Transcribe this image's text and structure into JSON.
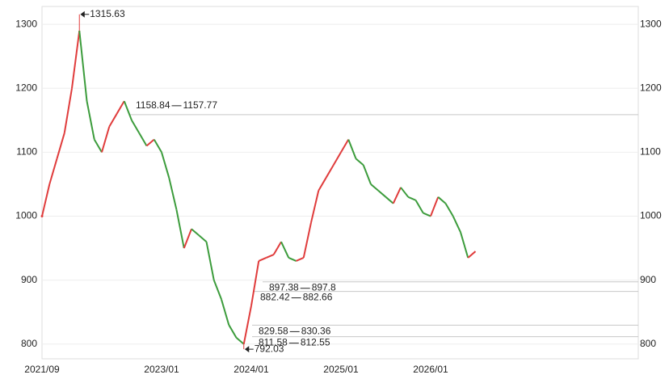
{
  "chart_data": {
    "type": "line",
    "categories": [
      "2021/09",
      null,
      null,
      null,
      null,
      null,
      null,
      null,
      null,
      null,
      null,
      null,
      null,
      null,
      null,
      null,
      "2023/01",
      null,
      null,
      null,
      null,
      null,
      null,
      null,
      null,
      null,
      null,
      null,
      "2024/01",
      null,
      null,
      null,
      null,
      null,
      null,
      null,
      null,
      null,
      null,
      null,
      "2025/01",
      null,
      null,
      null,
      null,
      null,
      null,
      null,
      null,
      null,
      null,
      null,
      "2026/01",
      null,
      null,
      null,
      null,
      null,
      null
    ],
    "values": [
      1000,
      1050,
      1090,
      1130,
      1200,
      1290,
      1180,
      1120,
      1100,
      1140,
      1160,
      1180,
      1150,
      1130,
      1110,
      1120,
      1100,
      1060,
      1010,
      950,
      980,
      970,
      960,
      900,
      870,
      830,
      810,
      800,
      860,
      930,
      935,
      940,
      960,
      935,
      930,
      935,
      990,
      1040,
      1060,
      1080,
      1100,
      1120,
      1090,
      1080,
      1050,
      1040,
      1030,
      1020,
      1045,
      1030,
      1025,
      1005,
      1000,
      1030,
      1020,
      1000,
      975,
      935,
      945
    ],
    "up_color": "#e03c3c",
    "down_color": "#3c9c3c",
    "high": 1315.63,
    "low": 792.03,
    "levels": [
      [
        1158.84,
        1157.77
      ],
      [
        897.38,
        897.8
      ],
      [
        882.42,
        882.66
      ],
      [
        829.58,
        830.36
      ],
      [
        811.58,
        812.55
      ]
    ],
    "ylim": [
      777,
      1328
    ],
    "yticks": [
      800,
      900,
      1000,
      1100,
      1200,
      1300
    ],
    "grid": true
  }
}
